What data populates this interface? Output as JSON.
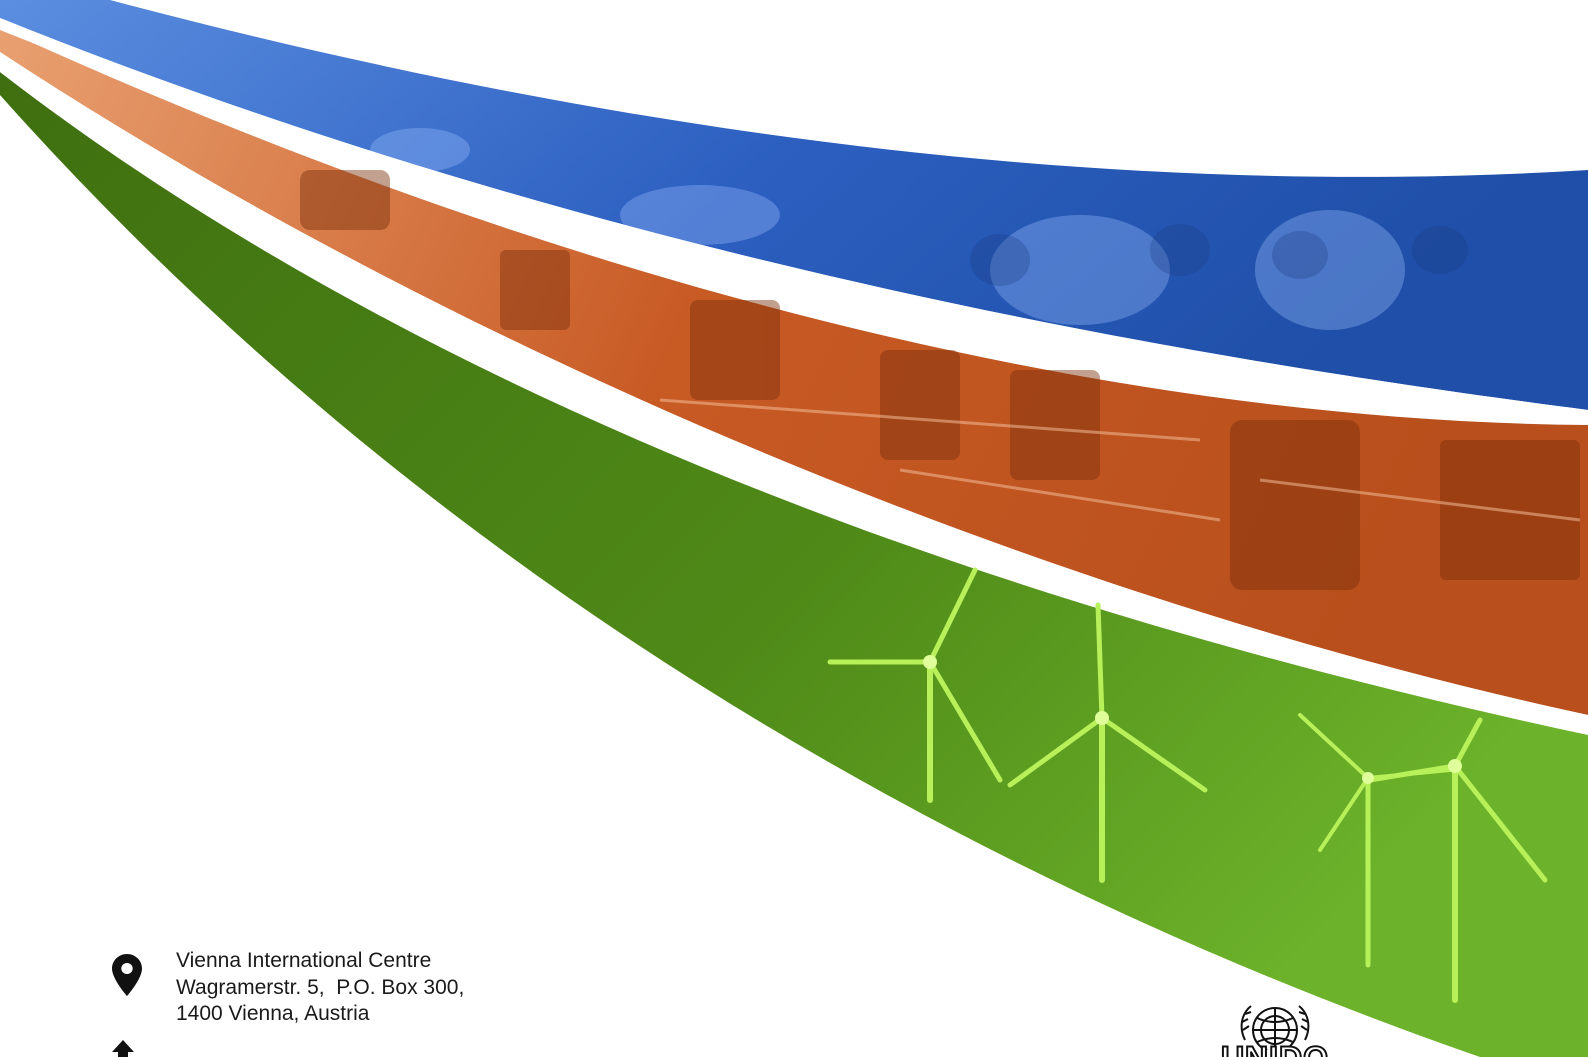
{
  "contact": {
    "address_lines": [
      "Vienna International Centre",
      "Wagramerstr. 5,  P.O. Box 300,",
      "1400 Vienna, Austria"
    ]
  },
  "logo": {
    "text": "UNIDO"
  },
  "icons": {
    "location": "map-pin-icon",
    "next": "pin-icon",
    "emblem": "un-emblem-icon"
  },
  "colors": {
    "blue_band": "#3f6fc8",
    "orange_band": "#d2662e",
    "green_band": "#5f9a22"
  }
}
